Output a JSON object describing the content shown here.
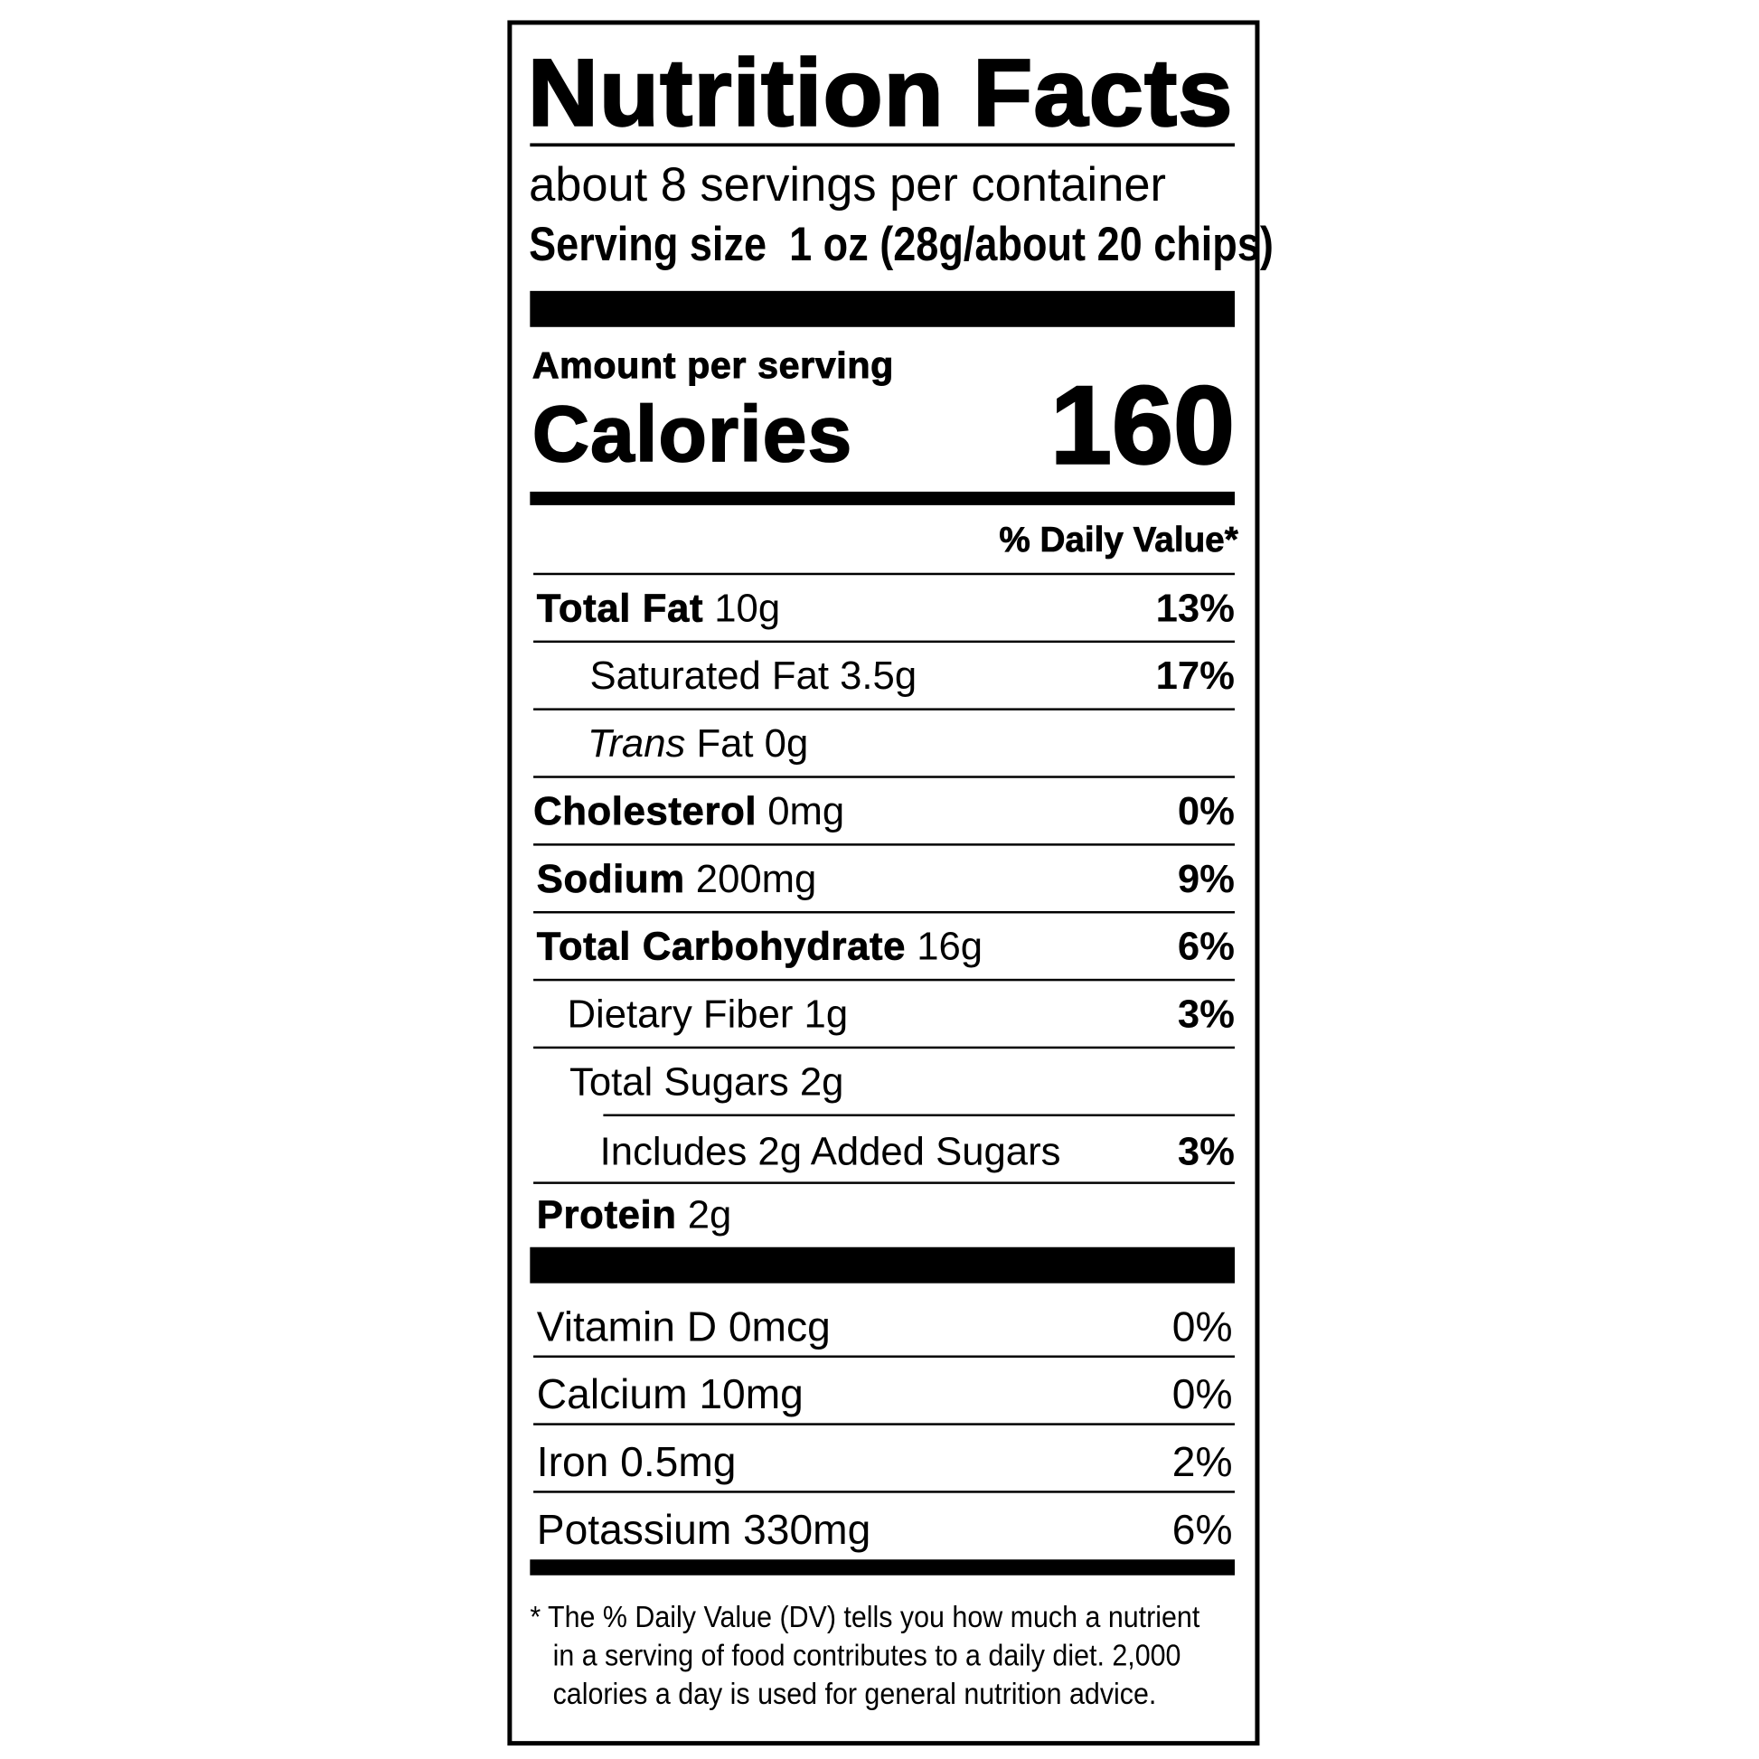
{
  "title": "Nutrition Facts",
  "servings_per_container": "about 8 servings per container",
  "serving_size_label": "Serving size",
  "serving_size_value": "1 oz (28g/about 20 chips)",
  "amount_per_serving": "Amount per serving",
  "calories_label": "Calories",
  "calories_value": "160",
  "daily_value_header": "% Daily Value*",
  "nutrients": [
    {
      "name": "Total Fat",
      "amount": "10g",
      "dv": "13%"
    },
    {
      "name": "Saturated Fat 3.5g",
      "amount": "",
      "dv": "17%"
    },
    {
      "name_italic": "Trans",
      "name": " Fat 0g",
      "amount": "",
      "dv": ""
    },
    {
      "name": "Cholesterol",
      "amount": "0mg",
      "dv": "0%"
    },
    {
      "name": "Sodium",
      "amount": "200mg",
      "dv": "9%"
    },
    {
      "name": "Total Carbohydrate",
      "amount": "16g",
      "dv": "6%"
    },
    {
      "name": "Dietary Fiber 1g",
      "amount": "",
      "dv": "3%"
    },
    {
      "name": "Total Sugars 2g",
      "amount": "",
      "dv": ""
    },
    {
      "name": "Includes 2g Added Sugars",
      "amount": "",
      "dv": "3%"
    },
    {
      "name": "Protein",
      "amount": "2g",
      "dv": ""
    }
  ],
  "vitamins": [
    {
      "name": "Vitamin D 0mcg",
      "dv": "0%"
    },
    {
      "name": "Calcium 10mg",
      "dv": "0%"
    },
    {
      "name": "Iron 0.5mg",
      "dv": "2%"
    },
    {
      "name": "Potassium 330mg",
      "dv": "6%"
    }
  ],
  "footnote": [
    "* The % Daily Value (DV) tells you how much a nutrient",
    "in a serving of food contributes to a daily diet. 2,000",
    "calories a day is used for general nutrition advice."
  ]
}
